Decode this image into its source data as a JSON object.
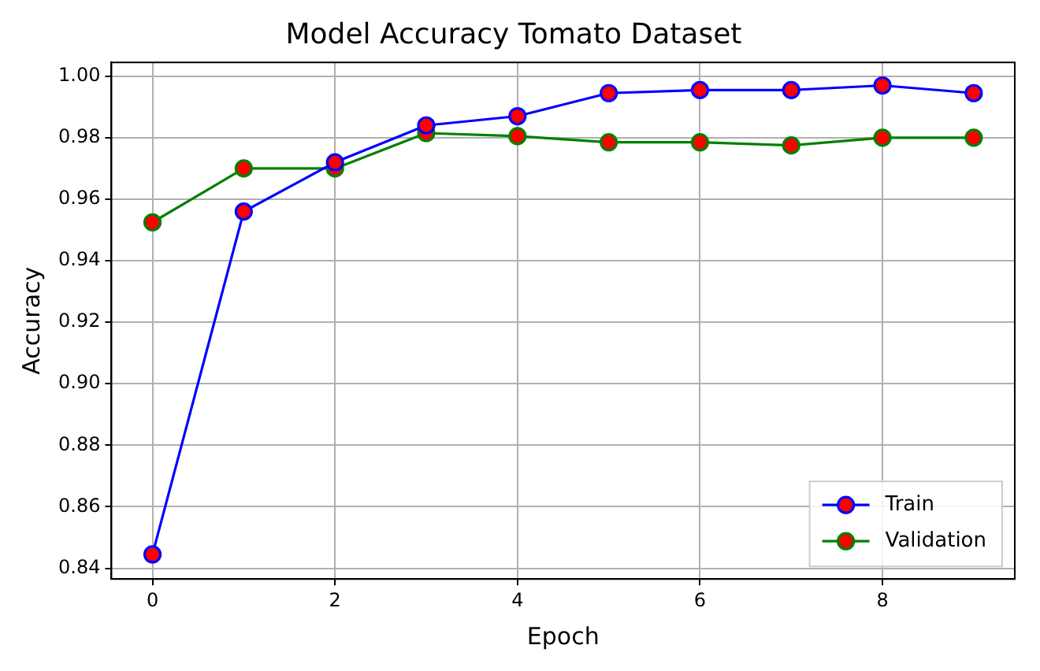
{
  "chart_data": {
    "type": "line",
    "title": "Model Accuracy Tomato Dataset",
    "xlabel": "Epoch",
    "ylabel": "Accuracy",
    "x": [
      0,
      1,
      2,
      3,
      4,
      5,
      6,
      7,
      8,
      9
    ],
    "series": [
      {
        "name": "Train",
        "color": "#0000ff",
        "values": [
          0.8445,
          0.956,
          0.972,
          0.984,
          0.987,
          0.9945,
          0.9955,
          0.9955,
          0.997,
          0.9945
        ]
      },
      {
        "name": "Validation",
        "color": "#008000",
        "values": [
          0.9525,
          0.97,
          0.97,
          0.9815,
          0.9805,
          0.9785,
          0.9785,
          0.9775,
          0.98,
          0.98
        ]
      }
    ],
    "xlim": [
      -0.45,
      9.45
    ],
    "xticks": [
      0,
      2,
      4,
      6,
      8
    ],
    "ylim": [
      0.8365,
      1.0045
    ],
    "yticks": [
      0.84,
      0.86,
      0.88,
      {
        "value": 0.9,
        "label": "0.90"
      },
      0.92,
      0.94,
      0.96,
      0.98,
      {
        "value": 1,
        "label": "1.00"
      }
    ],
    "grid": true,
    "legend": "bottom right",
    "marker": "circle",
    "line_style": "solid"
  }
}
